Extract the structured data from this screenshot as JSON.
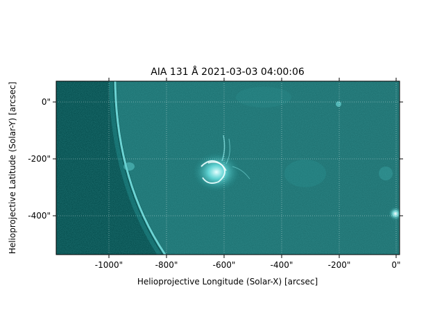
{
  "figure": {
    "title": "AIA 131 Å 2021-03-03 04:00:06",
    "xlabel": "Helioprojective Longitude (Solar-X) [arcsec]",
    "ylabel": "Helioprojective Latitude (Solar-Y) [arcsec]",
    "x_ticks": [
      {
        "value": -1000,
        "label": "-1000\""
      },
      {
        "value": -800,
        "label": "-800\""
      },
      {
        "value": -600,
        "label": "-600\""
      },
      {
        "value": -400,
        "label": "-400\""
      },
      {
        "value": -200,
        "label": "-200\""
      },
      {
        "value": 0,
        "label": "0\""
      }
    ],
    "y_ticks": [
      {
        "value": 0,
        "label": "0\""
      },
      {
        "value": -200,
        "label": "-200\""
      },
      {
        "value": -400,
        "label": "-400\""
      }
    ],
    "x_range": [
      -1190,
      10
    ],
    "y_range": [
      -540,
      70
    ],
    "grid": true,
    "colormap": [
      "#003d3d",
      "#1f8b8b",
      "#b9ffff"
    ],
    "features": {
      "limb": "solar limb arc on the left",
      "active_region_center": [
        -610,
        -240
      ],
      "bright_spot": [
        -5,
        -395
      ]
    }
  }
}
